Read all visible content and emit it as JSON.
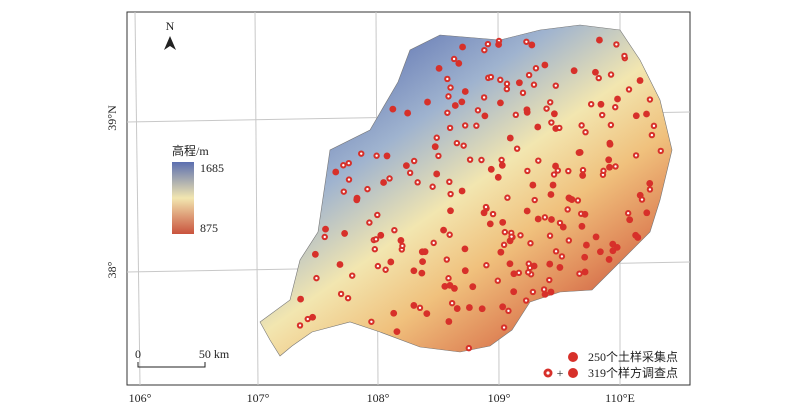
{
  "north": "N",
  "latitude_labels": [
    "39°N",
    "38°"
  ],
  "longitude_labels": [
    "106°",
    "107°",
    "108°",
    "109°",
    "110°E"
  ],
  "elevation_legend": {
    "title": "高程/m",
    "high": "1685",
    "low": "875"
  },
  "scale_bar": {
    "start": "0",
    "end": "50 km"
  },
  "legend": {
    "soil_points": "250个土样采集点",
    "plus": "+",
    "quadrat_points": "319个样方调查点"
  }
}
